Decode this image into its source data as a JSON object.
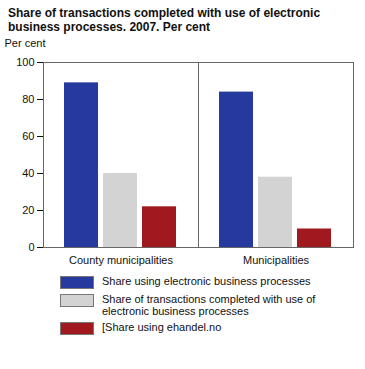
{
  "chart_data": {
    "type": "bar",
    "title": "Share of transactions completed with use of electronic business processes. 2007. Per cent",
    "y_label": "Per cent",
    "categories": [
      "County municipalities",
      "Municipalities"
    ],
    "series": [
      {
        "name": "Share using electronic business processes",
        "color": "#26399e",
        "values": [
          89,
          84
        ]
      },
      {
        "name": "Share of transactions completed with use of electronic business processes",
        "color": "#d3d3d3",
        "values": [
          40,
          38
        ]
      },
      {
        "name": "[Share using ehandel.no",
        "color": "#a0191f",
        "values": [
          22,
          10
        ]
      }
    ],
    "ylim": [
      0,
      100
    ],
    "yticks": [
      0,
      20,
      40,
      60,
      80,
      100
    ],
    "grid": false,
    "legend": "bottom"
  }
}
